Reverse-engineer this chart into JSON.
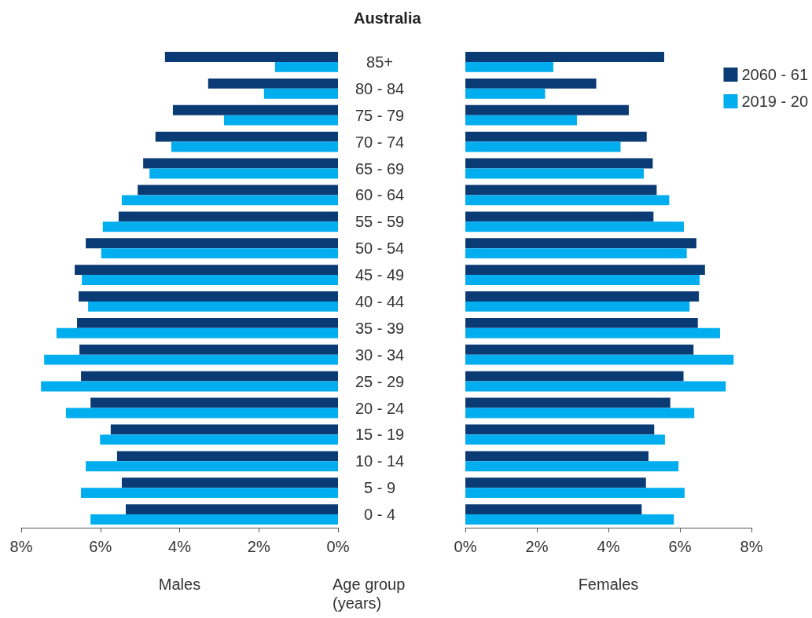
{
  "chart_data": [
    {
      "type": "bar",
      "orientation": "horizontal",
      "title": "Australia",
      "xlabel": "Males",
      "ylabel": "Age group (years)",
      "categories": [
        "85+",
        "80 - 84",
        "75 - 79",
        "70 - 74",
        "65 - 69",
        "60 - 64",
        "55 - 59",
        "50 - 54",
        "45 - 49",
        "40 - 44",
        "35 - 39",
        "30 - 34",
        "25 - 29",
        "20 - 24",
        "15 - 19",
        "10 - 14",
        "5 - 9",
        "0 - 4"
      ],
      "series": [
        {
          "color": "#0b3b74",
          "values": [
            4.37,
            3.28,
            4.17,
            4.61,
            4.92,
            5.06,
            5.54,
            6.37,
            6.65,
            6.55,
            6.59,
            6.53,
            6.49,
            6.25,
            5.74,
            5.58,
            5.46,
            5.36
          ]
        },
        {
          "color": "#00aeef",
          "values": [
            1.59,
            1.87,
            2.88,
            4.21,
            4.76,
            5.46,
            5.94,
            5.98,
            6.47,
            6.31,
            7.11,
            7.42,
            7.5,
            6.87,
            6.01,
            6.37,
            6.49,
            6.25
          ]
        }
      ],
      "xlim": [
        8,
        0
      ],
      "xticks": [
        {
          "value": 8,
          "label": "8%"
        },
        {
          "value": 6,
          "label": "6%"
        },
        {
          "value": 4,
          "label": "4%"
        },
        {
          "value": 2,
          "label": "2%"
        },
        {
          "value": 0,
          "label": "0%"
        }
      ],
      "grid": false
    },
    {
      "type": "bar",
      "orientation": "horizontal",
      "xlabel": "Females",
      "categories": [
        null,
        null,
        null,
        null,
        null,
        null,
        null,
        null,
        null,
        null,
        null,
        null,
        null,
        null,
        null,
        null,
        null,
        null
      ],
      "series": [
        {
          "name": "2060 - 61",
          "color": "#0b3b74",
          "values": [
            5.56,
            3.66,
            4.57,
            5.07,
            5.24,
            5.35,
            5.26,
            6.46,
            6.7,
            6.53,
            6.5,
            6.38,
            6.1,
            5.73,
            5.28,
            5.12,
            5.05,
            4.93
          ]
        },
        {
          "name": "2019 - 20",
          "color": "#00aeef",
          "values": [
            2.46,
            2.23,
            3.12,
            4.34,
            4.99,
            5.7,
            6.11,
            6.19,
            6.55,
            6.27,
            7.12,
            7.5,
            7.28,
            6.4,
            5.58,
            5.96,
            6.13,
            5.83
          ]
        }
      ],
      "xlim": [
        0,
        8
      ],
      "xticks": [
        {
          "value": 0,
          "label": "0%"
        },
        {
          "value": 2,
          "label": "2%"
        },
        {
          "value": 4,
          "label": "4%"
        },
        {
          "value": 6,
          "label": "6%"
        },
        {
          "value": 8,
          "label": "8%"
        }
      ],
      "legend": "top right",
      "grid": false
    }
  ]
}
